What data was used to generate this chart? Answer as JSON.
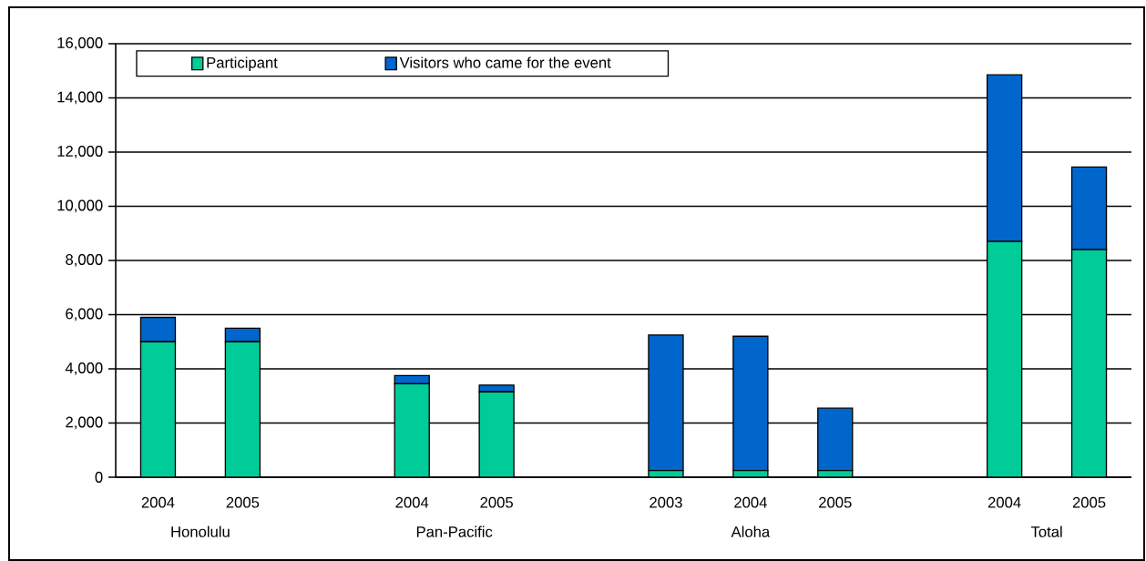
{
  "chart_data": {
    "type": "bar",
    "stacked": true,
    "categories": [
      "2004",
      "2005",
      null,
      "2004",
      "2005",
      null,
      "2003",
      "2004",
      "2005",
      null,
      "2004",
      "2005"
    ],
    "series": [
      {
        "name": "Participant",
        "color": "#00cc99",
        "values": [
          5000,
          5000,
          null,
          3450,
          3150,
          null,
          250,
          250,
          250,
          null,
          8700,
          8400
        ]
      },
      {
        "name": "Visitors who came for the event",
        "color": "#0066cc",
        "values": [
          900,
          500,
          null,
          300,
          250,
          null,
          5000,
          4950,
          2300,
          null,
          6150,
          3050
        ]
      }
    ],
    "annotations": [
      "Honolulu",
      "Pan-Pacific",
      "Aloha",
      "Total"
    ],
    "ylim": [
      0,
      16000
    ],
    "yticks": [
      {
        "value": 0,
        "label": "0"
      },
      {
        "value": 2000,
        "label": "2,000"
      },
      {
        "value": 4000,
        "label": "4,000"
      },
      {
        "value": 6000,
        "label": "6,000"
      },
      {
        "value": 8000,
        "label": "8,000"
      },
      {
        "value": 10000,
        "label": "10,000"
      },
      {
        "value": 12000,
        "label": "12,000"
      },
      {
        "value": 14000,
        "label": "14,000"
      },
      {
        "value": 16000,
        "label": "16,000"
      }
    ],
    "grid": "y",
    "legend": "top left"
  }
}
